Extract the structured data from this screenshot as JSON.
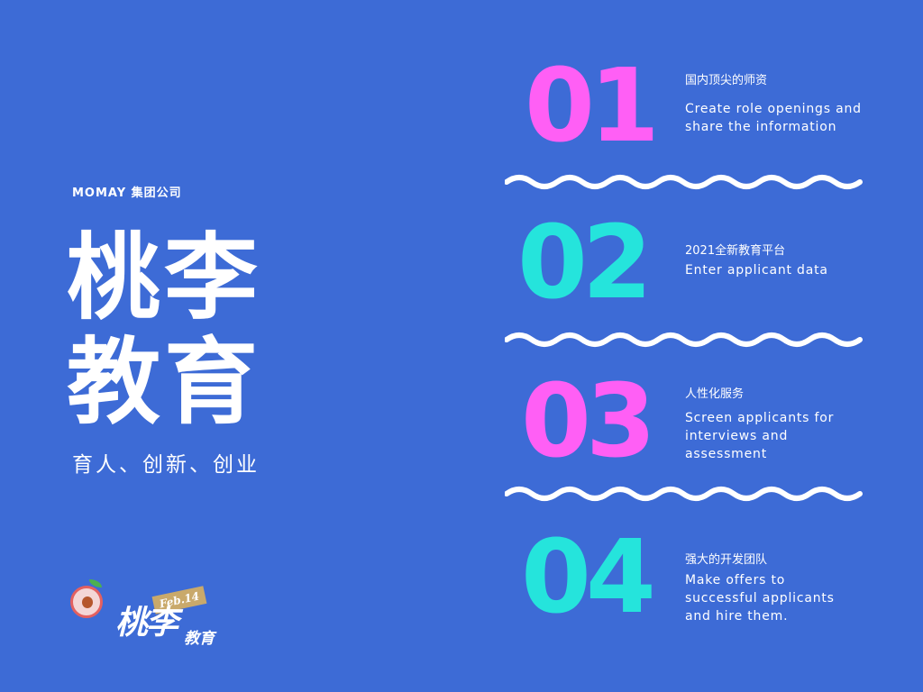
{
  "company": "MOMAY 集团公司",
  "title": [
    "桃李",
    "教育"
  ],
  "slogan": "育人、创新、创业",
  "logo": {
    "ribbon": "Feb.14",
    "text_big": "桃李",
    "text_small": "教育"
  },
  "colors": {
    "background": "#3d6bd6",
    "pink": "#ff5ff5",
    "cyan": "#25e4dc",
    "text": "#ffffff"
  },
  "steps": [
    {
      "number": "01",
      "title": "国内顶尖的师资",
      "lines": [
        "Create role openings and",
        "share the information"
      ]
    },
    {
      "number": "02",
      "title": "2021全新教育平台",
      "lines": [
        "Enter applicant data"
      ]
    },
    {
      "number": "03",
      "title": "人性化服务",
      "lines": [
        "Screen applicants for",
        "interviews and",
        "assessment"
      ]
    },
    {
      "number": "04",
      "title": "强大的开发团队",
      "lines": [
        "Make offers to",
        "successful applicants",
        "and hire them."
      ]
    }
  ]
}
